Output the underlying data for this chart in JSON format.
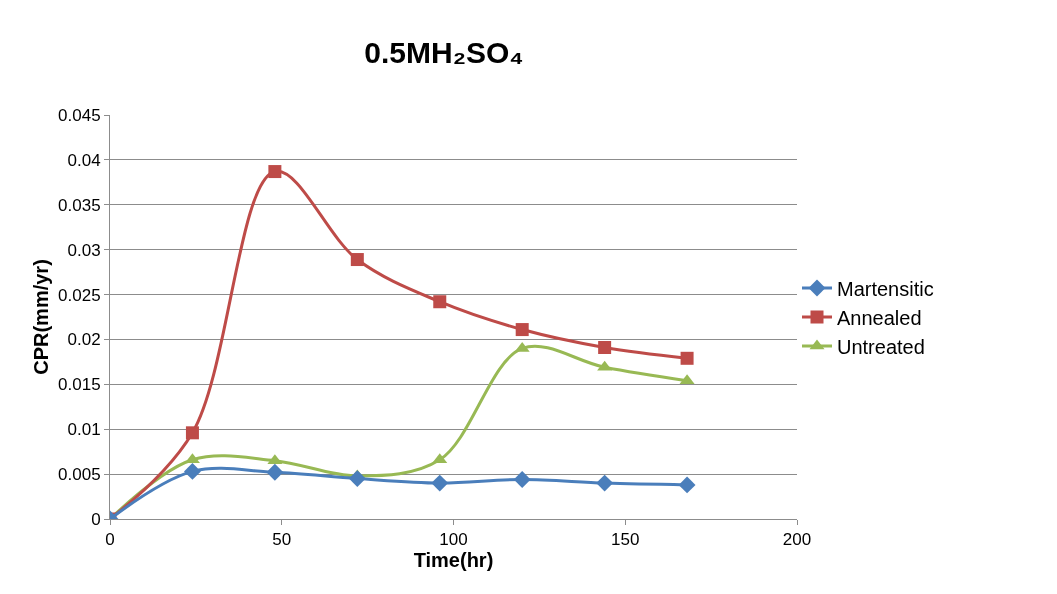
{
  "chart_data": {
    "type": "line",
    "title": "0.5MH₂SO₄",
    "xlabel": "Time(hr)",
    "ylabel": "CPR(mm/yr)",
    "x": [
      0,
      24,
      48,
      72,
      96,
      120,
      144,
      168
    ],
    "series": [
      {
        "name": "Martensitic",
        "color": "#4a7ebb",
        "marker": "diamond",
        "values": [
          0,
          0.0053,
          0.0052,
          0.0045,
          0.004,
          0.0044,
          0.004,
          0.0038
        ]
      },
      {
        "name": "Annealed",
        "color": "#be4b48",
        "marker": "square",
        "values": [
          0,
          0.0096,
          0.0387,
          0.0289,
          0.0242,
          0.0211,
          0.0191,
          0.0179
        ]
      },
      {
        "name": "Untreated",
        "color": "#98b954",
        "marker": "triangle",
        "values": [
          0,
          0.0066,
          0.0065,
          0.0048,
          0.0066,
          0.019,
          0.0169,
          0.0154
        ]
      }
    ],
    "xlim": [
      0,
      200
    ],
    "xticks": [
      0,
      50,
      100,
      150,
      200
    ],
    "ylim": [
      0,
      0.045
    ],
    "yticks": [
      0,
      0.005,
      0.01,
      0.015,
      0.02,
      0.025,
      0.03,
      0.035,
      0.04,
      0.045
    ],
    "grid": "y",
    "legend": "right"
  }
}
